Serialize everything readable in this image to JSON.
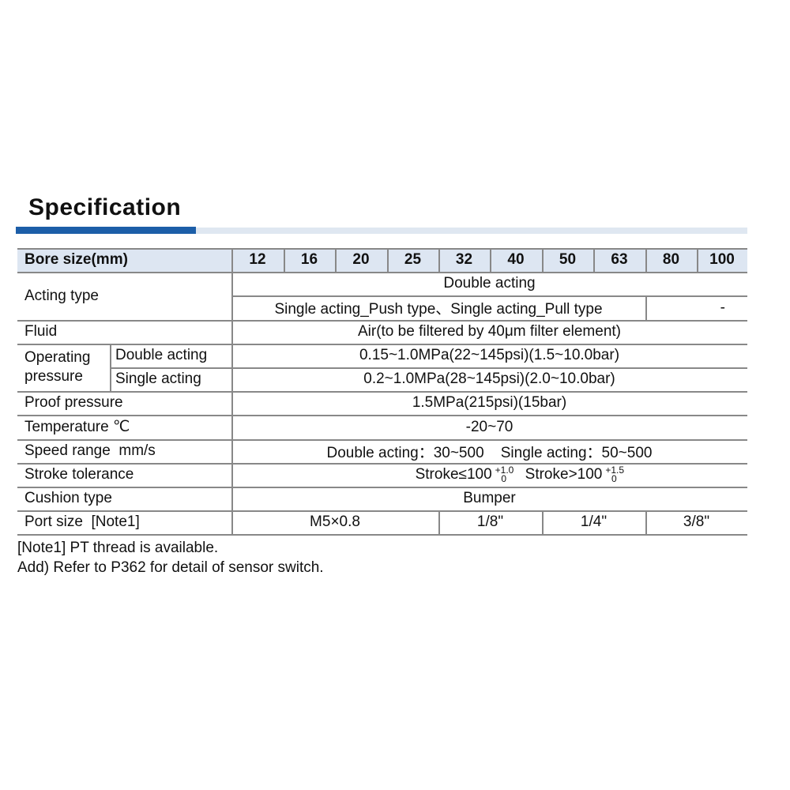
{
  "title": "Specification",
  "accent_color": "#1c5ea8",
  "header": {
    "label": "Bore size(mm)",
    "bores": [
      "12",
      "16",
      "20",
      "25",
      "32",
      "40",
      "50",
      "63",
      "80",
      "100"
    ]
  },
  "rows": {
    "acting_type": {
      "label": "Acting type",
      "double": "Double acting",
      "single": "Single acting_Push type、Single acting_Pull type",
      "single_na": "-"
    },
    "fluid": {
      "label": "Fluid",
      "value": "Air(to be filtered by 40μm filter element)"
    },
    "operating_pressure": {
      "label": "Operating pressure",
      "double_label": "Double acting",
      "double_value": "0.15~1.0MPa(22~145psi)(1.5~10.0bar)",
      "single_label": "Single acting",
      "single_value": "0.2~1.0MPa(28~145psi)(2.0~10.0bar)"
    },
    "proof_pressure": {
      "label": "Proof pressure",
      "value": "1.5MPa(215psi)(15bar)"
    },
    "temperature": {
      "label": "Temperature ℃",
      "value": "-20~70"
    },
    "speed_range": {
      "label": "Speed range  mm/s",
      "value": "Double acting：30~500    Single acting：50~500"
    },
    "stroke_tolerance": {
      "label": "Stroke tolerance",
      "a": "Stroke≤100",
      "a_upper": "+1.0",
      "a_lower": "0",
      "b": "Stroke>100",
      "b_upper": "+1.5",
      "b_lower": "0"
    },
    "cushion_type": {
      "label": "Cushion type",
      "value": "Bumper"
    },
    "port_size": {
      "label": "Port size  [Note1]",
      "values": [
        "M5×0.8",
        "1/8\"",
        "1/4\"",
        "3/8\""
      ]
    }
  },
  "notes": [
    "[Note1] PT thread is available.",
    "Add) Refer to P362 for detail of sensor switch."
  ]
}
